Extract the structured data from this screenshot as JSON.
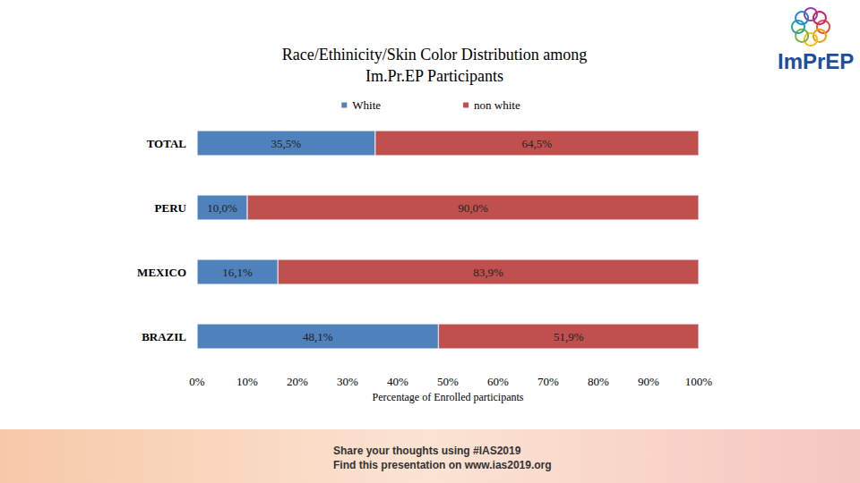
{
  "chart_data": {
    "type": "bar",
    "title": "Race/Ethinicity/Skin Color Distribution among\nIm.Pr.EP Participants",
    "orientation": "horizontal",
    "stacked": true,
    "data_labels": true,
    "grid": false,
    "legend": "top",
    "categories": [
      "TOTAL",
      "PERU",
      "MEXICO",
      "BRAZIL"
    ],
    "series": [
      {
        "name": "White",
        "color": "#4f81bd",
        "values": [
          35.5,
          10.0,
          16.1,
          48.1
        ],
        "value_labels": [
          "35,5%",
          "10,0%",
          "16,1%",
          "48,1%"
        ]
      },
      {
        "name": "non white",
        "color": "#c0504d",
        "values": [
          64.5,
          90.0,
          83.9,
          51.9
        ],
        "value_labels": [
          "64,5%",
          "90,0%",
          "83,9%",
          "51,9%"
        ]
      }
    ],
    "xlabel": "Percentage of Enrolled participants",
    "xlim": [
      0,
      100
    ],
    "xticks": [
      {
        "value": 0,
        "label": "0%"
      },
      {
        "value": 10,
        "label": "10%"
      },
      {
        "value": 20,
        "label": "20%"
      },
      {
        "value": 30,
        "label": "30%"
      },
      {
        "value": 40,
        "label": "40%"
      },
      {
        "value": 50,
        "label": "50%"
      },
      {
        "value": 60,
        "label": "60%"
      },
      {
        "value": 70,
        "label": "70%"
      },
      {
        "value": 80,
        "label": "80%"
      },
      {
        "value": 90,
        "label": "90%"
      },
      {
        "value": 100,
        "label": "100%"
      }
    ],
    "annotations": [
      "ImPrEP",
      "Share your thoughts using #IAS2019",
      "Find this presentation on www.ias2019.org"
    ]
  }
}
